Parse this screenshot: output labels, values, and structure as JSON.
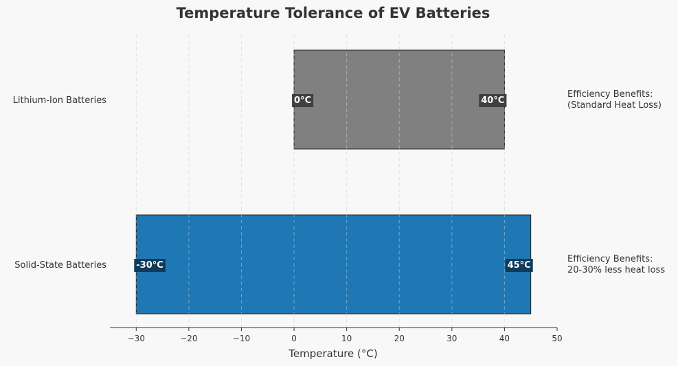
{
  "chart_data": {
    "type": "bar",
    "orientation": "horizontal",
    "title": "Temperature Tolerance of EV Batteries",
    "xlabel": "Temperature (°C)",
    "ylabel": "",
    "xlim": [
      -35,
      50
    ],
    "xticks": [
      -30,
      -20,
      -10,
      0,
      10,
      20,
      30,
      40,
      50
    ],
    "xtick_labels": [
      "−30",
      "−20",
      "−10",
      "0",
      "10",
      "20",
      "30",
      "40",
      "50"
    ],
    "grid": {
      "x": true,
      "y": false,
      "style": "dashed"
    },
    "legend": "none",
    "categories": [
      "Lithium-Ion Batteries",
      "Solid-State Batteries"
    ],
    "bars": [
      {
        "category": "Lithium-Ion Batteries",
        "min": 0,
        "max": 40,
        "min_label": "0°C",
        "max_label": "40°C",
        "color": "#808080",
        "label_bg": "#404040",
        "note": [
          "Efficiency Benefits:",
          "(Standard Heat Loss)"
        ]
      },
      {
        "category": "Solid-State Batteries",
        "min": -30,
        "max": 45,
        "min_label": "-30°C",
        "max_label": "45°C",
        "color": "#1f77b4",
        "label_bg": "#0f3b5a",
        "note": [
          "Efficiency Benefits:",
          "20-30% less heat loss"
        ]
      }
    ]
  }
}
